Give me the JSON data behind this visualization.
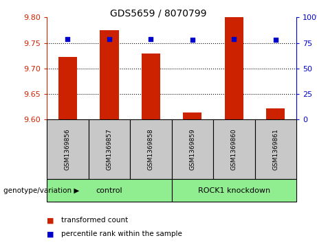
{
  "title": "GDS5659 / 8070799",
  "samples": [
    "GSM1369856",
    "GSM1369857",
    "GSM1369858",
    "GSM1369859",
    "GSM1369860",
    "GSM1369861"
  ],
  "red_values": [
    9.722,
    9.775,
    9.73,
    9.614,
    9.8,
    9.622
  ],
  "blue_values": [
    79,
    79,
    79,
    78,
    79,
    78
  ],
  "ylim_left": [
    9.6,
    9.8
  ],
  "ylim_right": [
    0,
    100
  ],
  "yticks_left": [
    9.6,
    9.65,
    9.7,
    9.75,
    9.8
  ],
  "yticks_right": [
    0,
    25,
    50,
    75,
    100
  ],
  "ytick_labels_right": [
    "0",
    "25",
    "50",
    "75",
    "100%"
  ],
  "groups": [
    {
      "label": "control",
      "start": 0,
      "end": 3,
      "color": "#90EE90"
    },
    {
      "label": "ROCK1 knockdown",
      "start": 3,
      "end": 6,
      "color": "#90EE90"
    }
  ],
  "bar_color": "#CC2200",
  "dot_color": "#0000CC",
  "grid_color": "#000000",
  "bg_color": "#FFFFFF",
  "sample_box_color": "#C8C8C8",
  "left_axis_color": "#CC2200",
  "right_axis_color": "#0000CC",
  "legend_red_label": "transformed count",
  "legend_blue_label": "percentile rank within the sample",
  "genotype_label": "genotype/variation"
}
